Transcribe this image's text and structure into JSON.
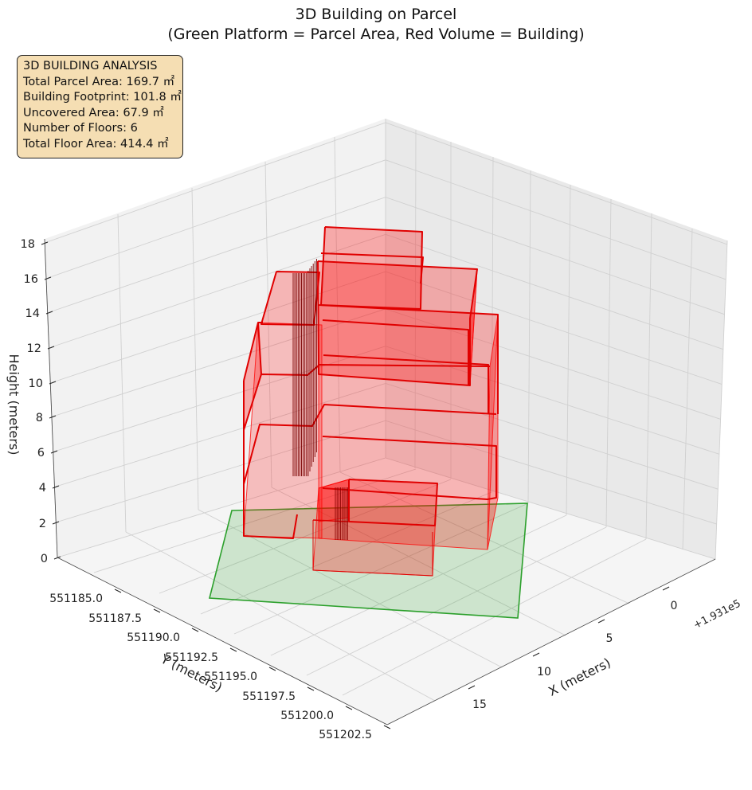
{
  "chart_data": {
    "type": "3d-bar",
    "title": "3D Building on Parcel",
    "subtitle": "(Green Platform = Parcel Area, Red Volume = Building)",
    "xlabel": "X (meters)",
    "ylabel": "Y (meters)",
    "zlabel": "Height (meters)",
    "x_offset_label": "+1.931e5",
    "x_ticks": [
      "0",
      "5",
      "10",
      "15"
    ],
    "y_ticks": [
      "551185.0",
      "551187.5",
      "551190.0",
      "551192.5",
      "551195.0",
      "551197.5",
      "551200.0",
      "551202.5"
    ],
    "z_ticks": [
      "0",
      "2",
      "4",
      "6",
      "8",
      "10",
      "12",
      "14",
      "16",
      "18"
    ],
    "z_range": [
      0,
      18
    ],
    "grid": true,
    "parcel_color": "#2ca02c",
    "building_color": "#ff0000",
    "series": [
      {
        "name": "Parcel Area",
        "height": 0
      },
      {
        "name": "Building",
        "floors": 6
      }
    ]
  },
  "info": {
    "heading": "3D BUILDING ANALYSIS",
    "total_parcel_area": "Total Parcel Area: 169.7 ㎡",
    "building_footprint": "Building Footprint: 101.8 ㎡",
    "uncovered_area": "Uncovered Area: 67.9 ㎡",
    "number_of_floors": "Number of Floors: 6",
    "total_floor_area": "Total Floor Area: 414.4 ㎡"
  }
}
